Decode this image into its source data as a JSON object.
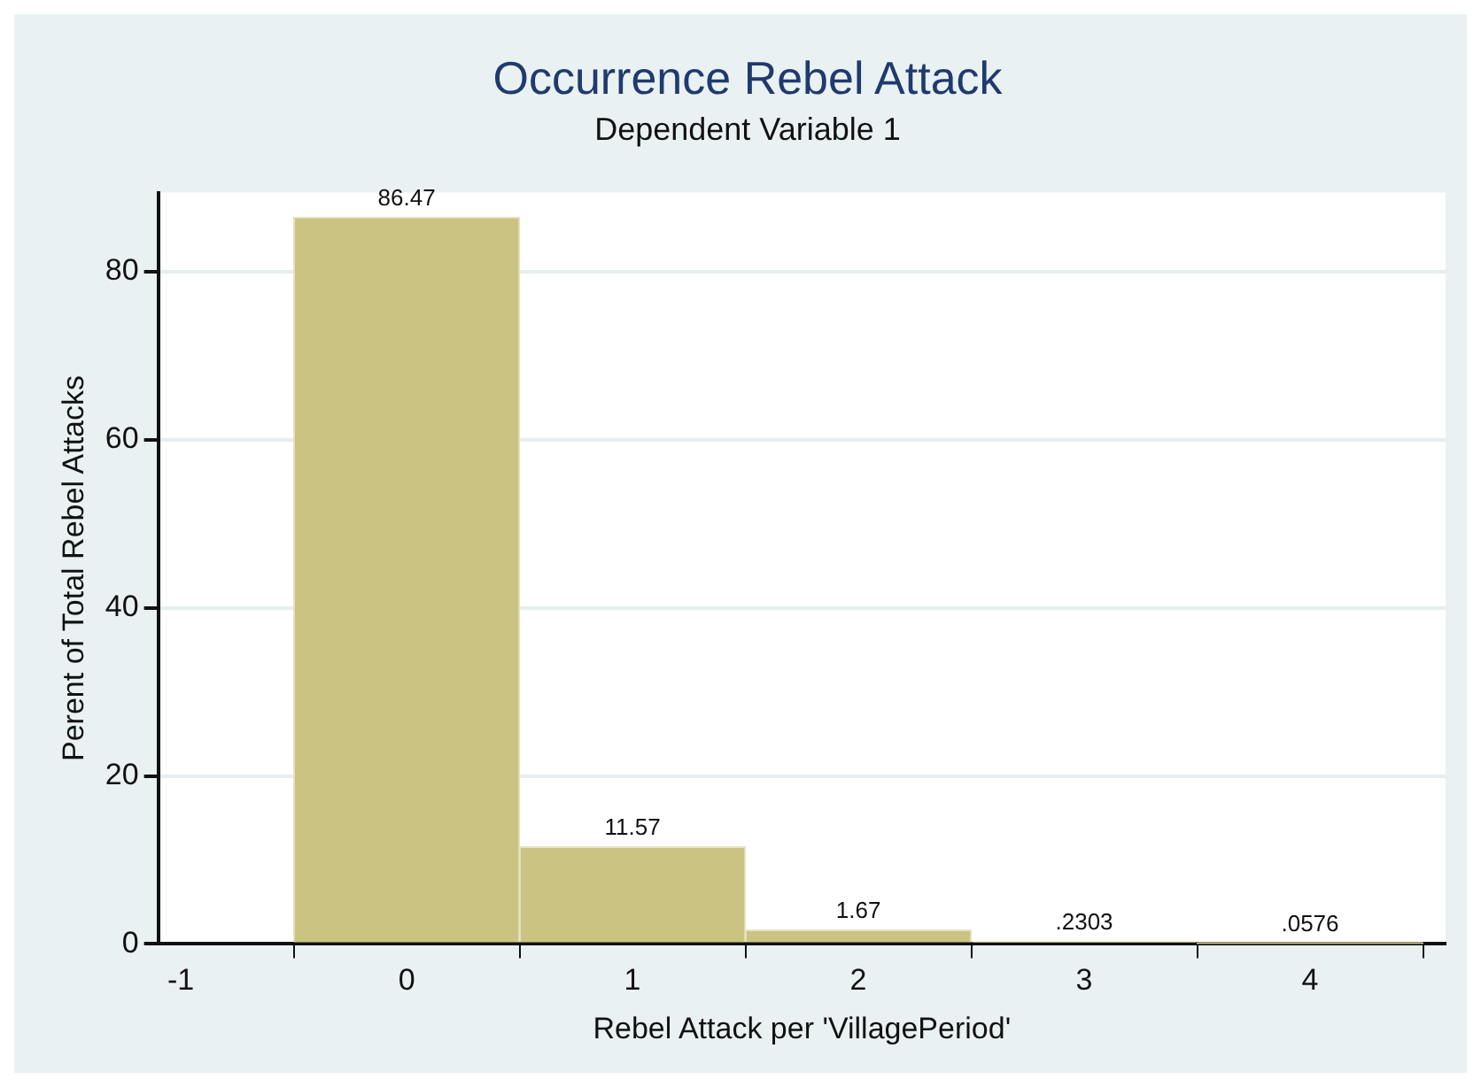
{
  "chart_data": {
    "type": "histogram",
    "title": "Occurrence Rebel Attack",
    "subtitle": "Dependent Variable 1",
    "xlabel": "Rebel Attack per 'VillagePeriod'",
    "ylabel": "Perent of Total Rebel Attacks",
    "bins": [
      -0.5,
      0.5,
      1.5,
      2.5,
      3.5,
      4.5
    ],
    "values": [
      86.47,
      11.57,
      1.67,
      0.2303,
      0.0576
    ],
    "value_labels": [
      "86.47",
      "11.57",
      "1.67",
      ".2303",
      ".0576"
    ],
    "color": "#cbc381",
    "xlim": [
      -1.1,
      4.6
    ],
    "xticks": [
      -1,
      0,
      1,
      2,
      3,
      4
    ],
    "ylim": [
      0,
      89.4
    ],
    "yticks": [
      0,
      20,
      40,
      60,
      80
    ],
    "grid": "y",
    "legend": false
  }
}
